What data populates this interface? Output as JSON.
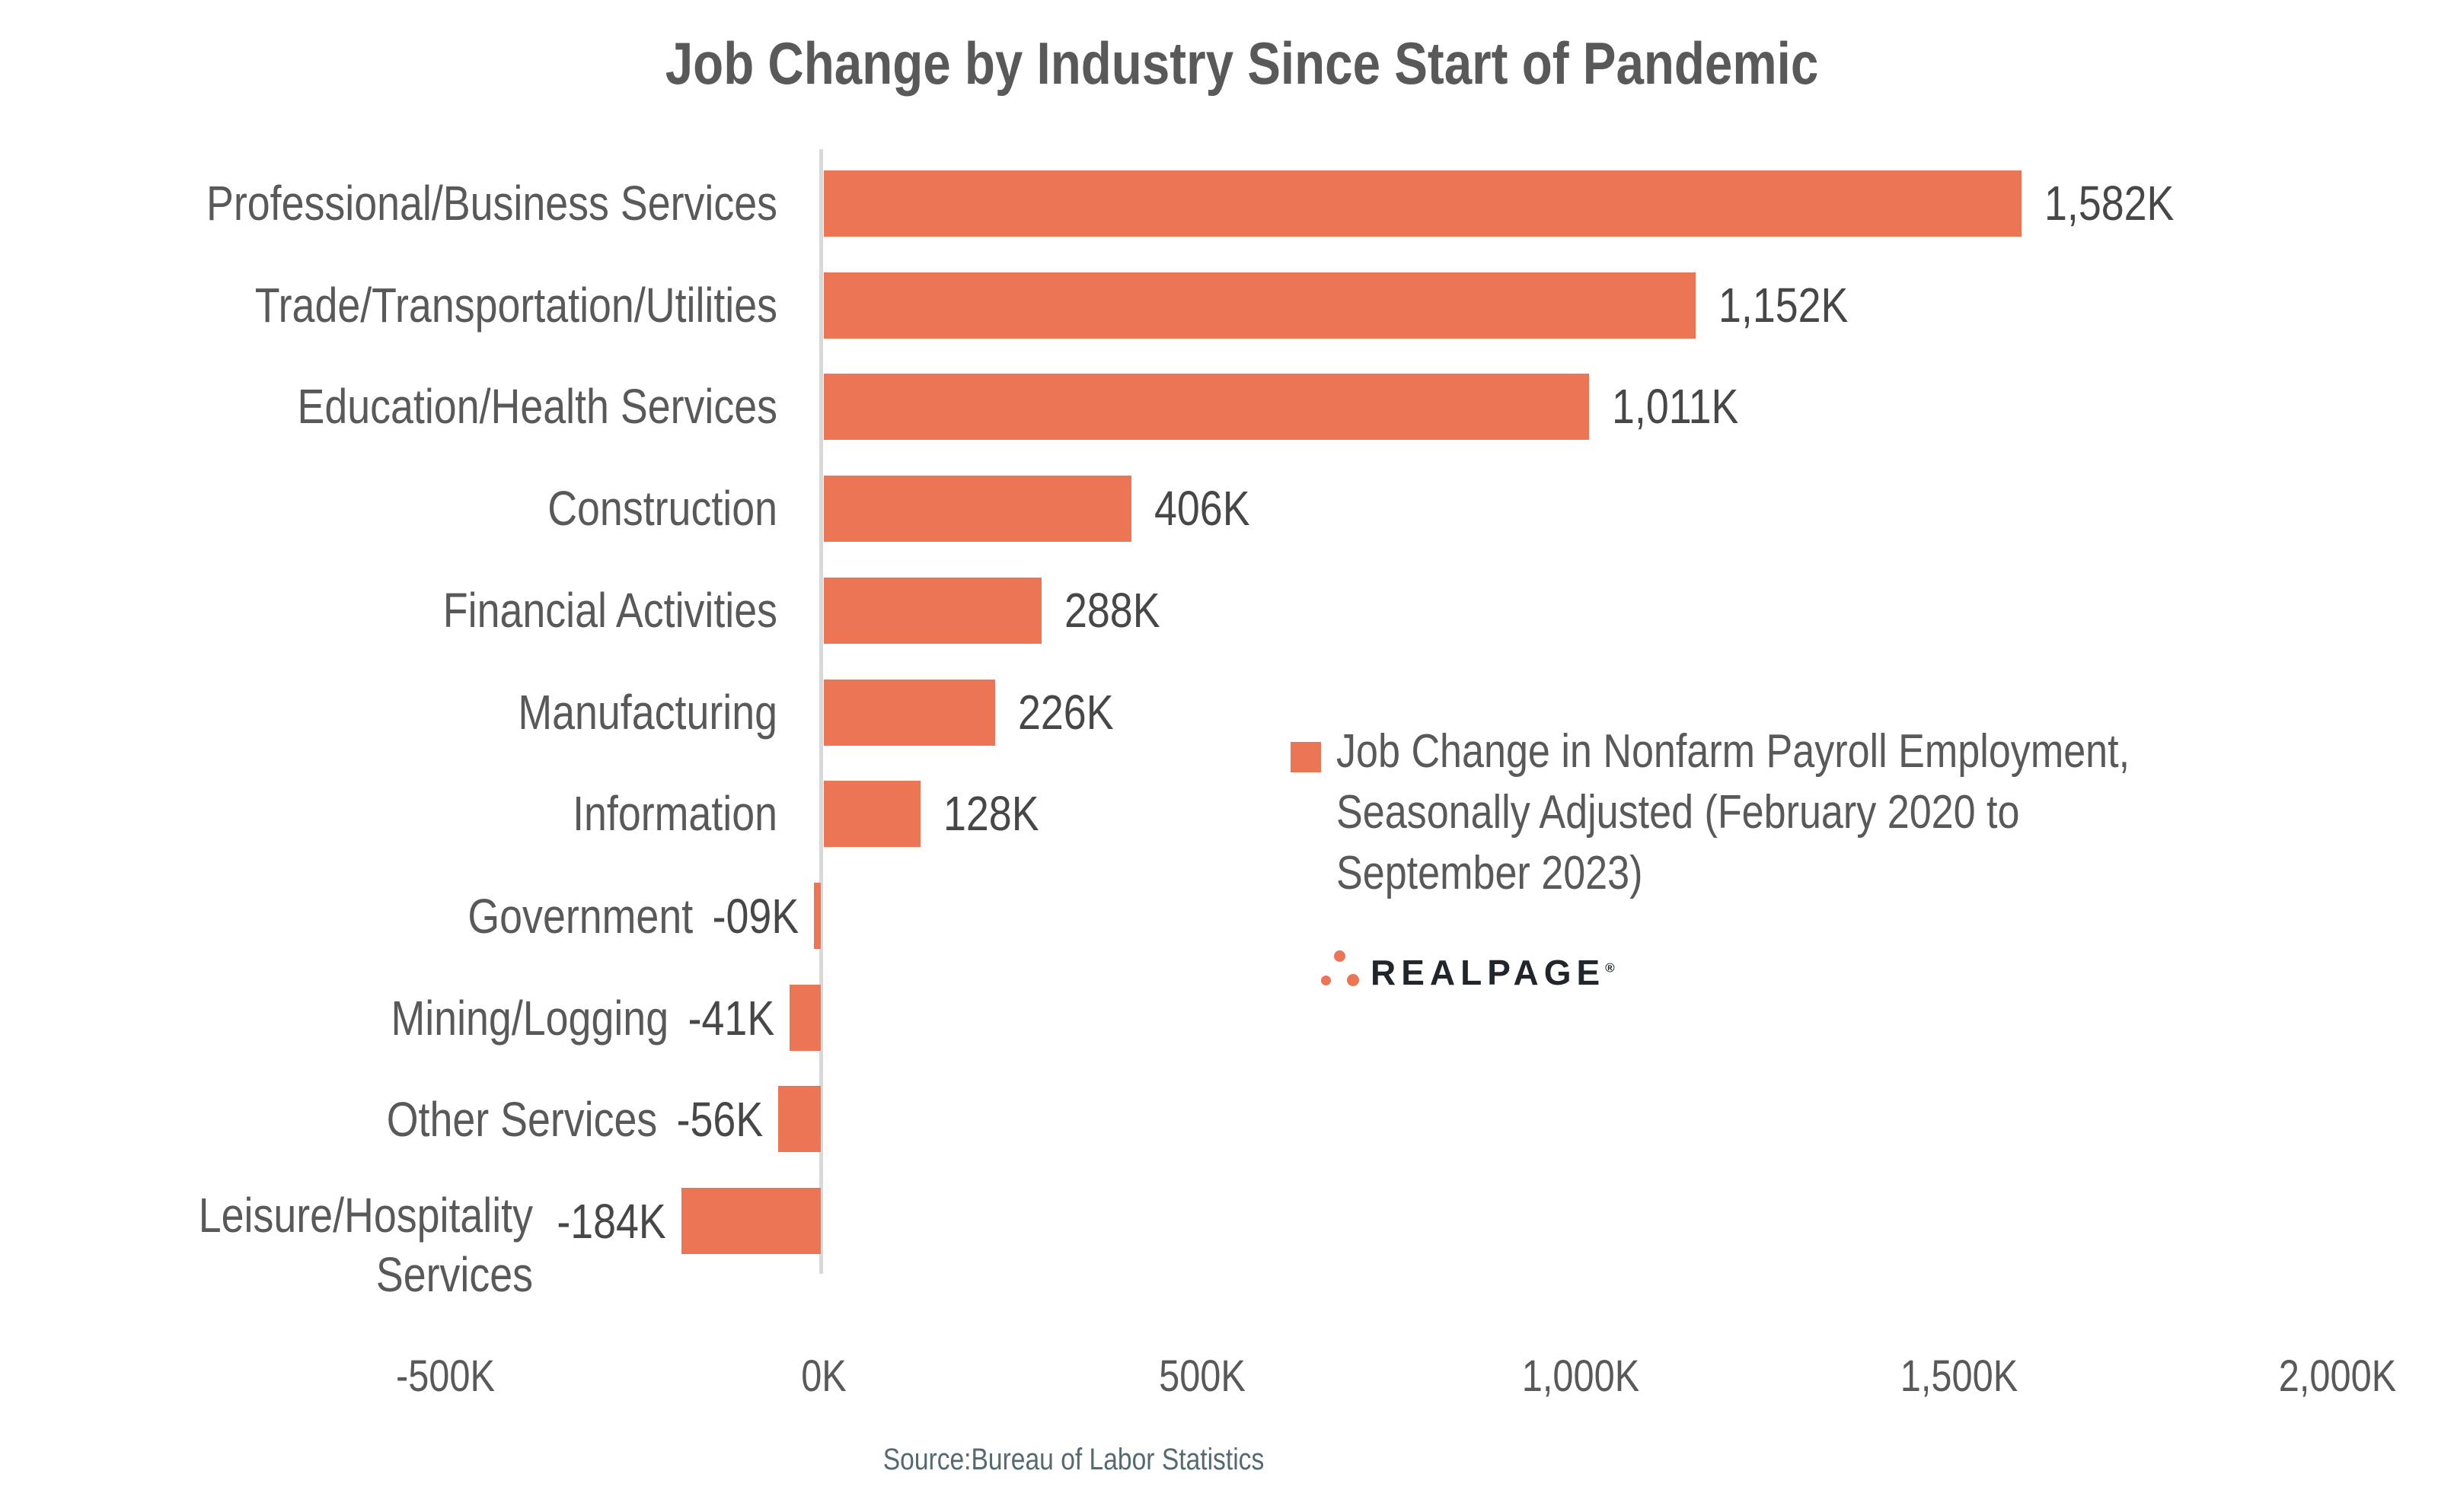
{
  "chart_data": {
    "type": "bar",
    "orientation": "horizontal",
    "title": "Job Change by Industry Since Start of Pandemic",
    "rows": [
      {
        "category": "Professional/Business Services",
        "value": 1582,
        "label": "1,582K"
      },
      {
        "category": "Trade/Transportation/Utilities",
        "value": 1152,
        "label": "1,152K"
      },
      {
        "category": "Education/Health Services",
        "value": 1011,
        "label": "1,011K"
      },
      {
        "category": "Construction",
        "value": 406,
        "label": "406K"
      },
      {
        "category": "Financial Activities",
        "value": 288,
        "label": "288K"
      },
      {
        "category": "Manufacturing",
        "value": 226,
        "label": "226K"
      },
      {
        "category": "Information",
        "value": 128,
        "label": "128K"
      },
      {
        "category": "Government",
        "value": -9,
        "label": "-09K"
      },
      {
        "category": "Mining/Logging",
        "value": -41,
        "label": "-41K"
      },
      {
        "category": "Other Services",
        "value": -56,
        "label": "-56K"
      },
      {
        "category": "Leisure/Hospitality Services",
        "value": -184,
        "label": "-184K"
      }
    ],
    "x_ticks": [
      {
        "label": "-500K",
        "value": -500
      },
      {
        "label": "0K",
        "value": 0
      },
      {
        "label": "500K",
        "value": 500
      },
      {
        "label": "1,000K",
        "value": 1000
      },
      {
        "label": "1,500K",
        "value": 1500
      },
      {
        "label": "2,000K",
        "value": 2000
      }
    ],
    "xlim": [
      -500,
      2130
    ],
    "legend": {
      "lines": [
        "Job Change in Nonfarm Payroll Employment,",
        "Seasonally Adjusted (February 2020 to",
        "September 2023)"
      ]
    }
  },
  "branding": {
    "logo_text": "REALPAGE",
    "registered_mark": "®"
  },
  "footer": {
    "source_text": "Source:Bureau of Labor Statistics"
  },
  "colors": {
    "bar": "#EC7556",
    "zero_axis_line": "#D9D9D9",
    "category_text": "#595959",
    "value_text": "#474747",
    "title_text": "#595959",
    "source_text": "#546A70",
    "logo_text": "#21262C",
    "background": "#FFFFFF"
  }
}
